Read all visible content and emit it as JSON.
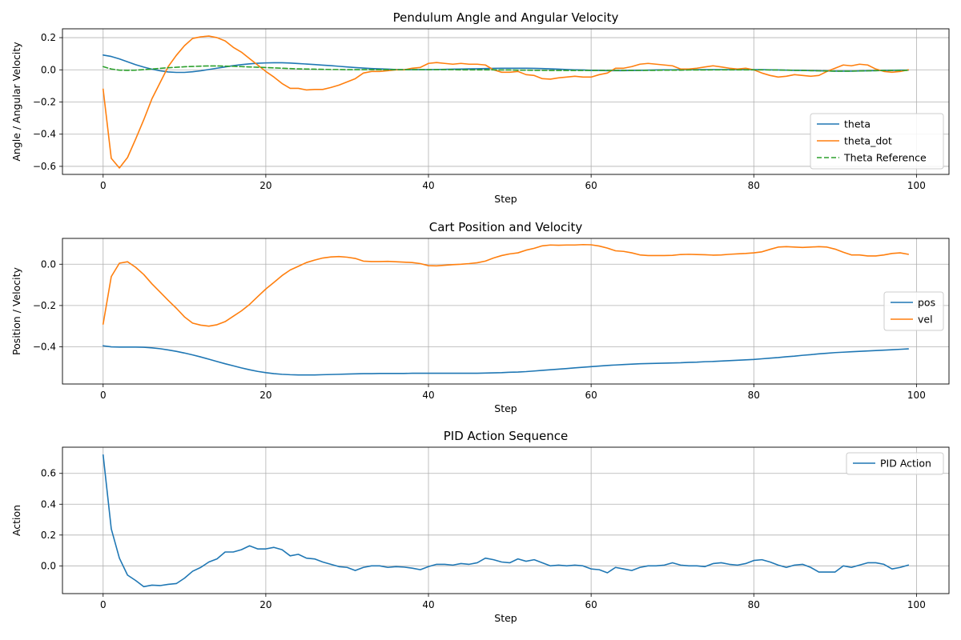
{
  "colors": {
    "blue": "#1f77b4",
    "orange": "#ff7f0e",
    "green": "#2ca02c"
  },
  "chart_data": [
    {
      "type": "line",
      "title": "Pendulum Angle and Angular Velocity",
      "xlabel": "Step",
      "ylabel": "Angle / Angular Velocity",
      "xlim": [
        -5,
        104
      ],
      "ylim": [
        -0.65,
        0.255
      ],
      "xticks": [
        0,
        20,
        40,
        60,
        80,
        100
      ],
      "yticks": [
        -0.6,
        -0.4,
        -0.2,
        0.0,
        0.2
      ],
      "ytick_labels": [
        "−0.6",
        "−0.4",
        "−0.2",
        "0.0",
        "0.2"
      ],
      "grid": true,
      "legend_position": "lower-right",
      "series": [
        {
          "name": "theta",
          "color": "#1f77b4",
          "style": "solid",
          "values": [
            0.092,
            0.083,
            0.068,
            0.05,
            0.032,
            0.017,
            0.004,
            -0.006,
            -0.013,
            -0.016,
            -0.016,
            -0.012,
            -0.006,
            0.002,
            0.01,
            0.018,
            0.026,
            0.032,
            0.037,
            0.041,
            0.043,
            0.044,
            0.044,
            0.042,
            0.039,
            0.036,
            0.033,
            0.029,
            0.026,
            0.022,
            0.018,
            0.014,
            0.011,
            0.008,
            0.006,
            0.004,
            0.002,
            0.001,
            0.001,
            0.001,
            0.001,
            0.002,
            0.003,
            0.004,
            0.005,
            0.006,
            0.007,
            0.008,
            0.009,
            0.01,
            0.01,
            0.01,
            0.01,
            0.009,
            0.008,
            0.006,
            0.004,
            0.002,
            0.0,
            -0.001,
            -0.003,
            -0.004,
            -0.005,
            -0.005,
            -0.005,
            -0.004,
            -0.003,
            -0.002,
            -0.001,
            0.0,
            0.0,
            0.001,
            0.001,
            0.001,
            0.001,
            0.001,
            0.001,
            0.001,
            0.001,
            0.001,
            0.001,
            0.001,
            0.0,
            -0.001,
            -0.002,
            -0.003,
            -0.004,
            -0.005,
            -0.006,
            -0.007,
            -0.008,
            -0.008,
            -0.008,
            -0.007,
            -0.006,
            -0.005,
            -0.004,
            -0.003,
            -0.002,
            -0.002
          ]
        },
        {
          "name": "theta_dot",
          "color": "#ff7f0e",
          "style": "solid",
          "values": [
            -0.12,
            -0.55,
            -0.61,
            -0.545,
            -0.43,
            -0.31,
            -0.18,
            -0.08,
            0.02,
            0.09,
            0.15,
            0.195,
            0.205,
            0.21,
            0.2,
            0.18,
            0.14,
            0.11,
            0.07,
            0.03,
            -0.01,
            -0.045,
            -0.085,
            -0.115,
            -0.115,
            -0.125,
            -0.122,
            -0.122,
            -0.11,
            -0.095,
            -0.075,
            -0.055,
            -0.02,
            -0.01,
            -0.01,
            -0.005,
            0.0,
            0.0,
            0.01,
            0.015,
            0.04,
            0.045,
            0.04,
            0.035,
            0.04,
            0.035,
            0.035,
            0.03,
            0.0,
            -0.015,
            -0.015,
            -0.01,
            -0.03,
            -0.035,
            -0.055,
            -0.058,
            -0.05,
            -0.045,
            -0.04,
            -0.045,
            -0.045,
            -0.03,
            -0.02,
            0.01,
            0.01,
            0.02,
            0.035,
            0.04,
            0.035,
            0.03,
            0.025,
            0.005,
            0.005,
            0.01,
            0.018,
            0.025,
            0.018,
            0.01,
            0.005,
            0.01,
            0.0,
            -0.02,
            -0.035,
            -0.045,
            -0.04,
            -0.03,
            -0.035,
            -0.04,
            -0.035,
            -0.01,
            0.01,
            0.03,
            0.025,
            0.035,
            0.03,
            0.005,
            -0.01,
            -0.015,
            -0.01,
            0.0
          ]
        },
        {
          "name": "Theta Reference",
          "color": "#2ca02c",
          "style": "dashed",
          "values": [
            0.02,
            0.005,
            -0.002,
            -0.003,
            -0.002,
            0.001,
            0.005,
            0.009,
            0.013,
            0.016,
            0.019,
            0.021,
            0.023,
            0.024,
            0.024,
            0.023,
            0.022,
            0.02,
            0.018,
            0.016,
            0.014,
            0.012,
            0.01,
            0.008,
            0.006,
            0.005,
            0.004,
            0.003,
            0.002,
            0.002,
            0.001,
            0.001,
            0.001,
            0.001,
            0.001,
            0.001,
            0.001,
            0.001,
            0.001,
            0.001,
            0.001,
            0.001,
            0.001,
            0.001,
            0.0,
            0.0,
            0.0,
            0.0,
            0.0,
            -0.001,
            -0.001,
            -0.002,
            -0.002,
            -0.003,
            -0.003,
            -0.004,
            -0.004,
            -0.004,
            -0.004,
            -0.004,
            -0.004,
            -0.004,
            -0.004,
            -0.004,
            -0.004,
            -0.004,
            -0.003,
            -0.003,
            -0.003,
            -0.002,
            -0.002,
            -0.002,
            -0.001,
            -0.001,
            -0.001,
            0.0,
            0.0,
            0.0,
            0.0,
            0.0,
            0.0,
            0.0,
            -0.001,
            -0.001,
            -0.002,
            -0.003,
            -0.004,
            -0.005,
            -0.006,
            -0.007,
            -0.008,
            -0.008,
            -0.008,
            -0.007,
            -0.006,
            -0.005,
            -0.004,
            -0.003,
            -0.003,
            -0.003
          ]
        }
      ]
    },
    {
      "type": "line",
      "title": "Cart Position and Velocity",
      "xlabel": "Step",
      "ylabel": "Position / Velocity",
      "xlim": [
        -5,
        104
      ],
      "ylim": [
        -0.58,
        0.125
      ],
      "xticks": [
        0,
        20,
        40,
        60,
        80,
        100
      ],
      "yticks": [
        -0.4,
        -0.2,
        0.0
      ],
      "ytick_labels": [
        "−0.4",
        "−0.2",
        "0.0"
      ],
      "grid": true,
      "legend_position": "center-right",
      "series": [
        {
          "name": "pos",
          "color": "#1f77b4",
          "style": "solid",
          "values": [
            -0.395,
            -0.4,
            -0.401,
            -0.401,
            -0.401,
            -0.402,
            -0.405,
            -0.409,
            -0.415,
            -0.422,
            -0.43,
            -0.439,
            -0.449,
            -0.46,
            -0.471,
            -0.482,
            -0.492,
            -0.502,
            -0.511,
            -0.519,
            -0.525,
            -0.53,
            -0.533,
            -0.535,
            -0.536,
            -0.536,
            -0.536,
            -0.535,
            -0.534,
            -0.533,
            -0.532,
            -0.531,
            -0.53,
            -0.53,
            -0.529,
            -0.529,
            -0.529,
            -0.529,
            -0.528,
            -0.528,
            -0.528,
            -0.528,
            -0.528,
            -0.528,
            -0.528,
            -0.528,
            -0.528,
            -0.527,
            -0.526,
            -0.525,
            -0.523,
            -0.522,
            -0.52,
            -0.517,
            -0.514,
            -0.511,
            -0.508,
            -0.505,
            -0.502,
            -0.499,
            -0.496,
            -0.493,
            -0.49,
            -0.488,
            -0.486,
            -0.484,
            -0.482,
            -0.481,
            -0.48,
            -0.479,
            -0.478,
            -0.477,
            -0.475,
            -0.474,
            -0.472,
            -0.471,
            -0.469,
            -0.467,
            -0.465,
            -0.463,
            -0.461,
            -0.458,
            -0.455,
            -0.452,
            -0.448,
            -0.445,
            -0.441,
            -0.438,
            -0.434,
            -0.431,
            -0.428,
            -0.426,
            -0.424,
            -0.422,
            -0.42,
            -0.418,
            -0.416,
            -0.414,
            -0.412,
            -0.41
          ]
        },
        {
          "name": "vel",
          "color": "#ff7f0e",
          "style": "solid",
          "values": [
            -0.29,
            -0.06,
            0.005,
            0.012,
            -0.015,
            -0.05,
            -0.095,
            -0.135,
            -0.175,
            -0.213,
            -0.255,
            -0.285,
            -0.295,
            -0.3,
            -0.293,
            -0.278,
            -0.252,
            -0.226,
            -0.195,
            -0.157,
            -0.12,
            -0.088,
            -0.055,
            -0.028,
            -0.01,
            0.008,
            0.02,
            0.03,
            0.035,
            0.037,
            0.034,
            0.028,
            0.015,
            0.013,
            0.013,
            0.014,
            0.012,
            0.01,
            0.008,
            0.003,
            -0.007,
            -0.008,
            -0.005,
            -0.002,
            0.0,
            0.003,
            0.007,
            0.015,
            0.03,
            0.042,
            0.05,
            0.055,
            0.068,
            0.077,
            0.089,
            0.093,
            0.092,
            0.093,
            0.093,
            0.095,
            0.094,
            0.088,
            0.078,
            0.065,
            0.062,
            0.055,
            0.045,
            0.042,
            0.042,
            0.042,
            0.043,
            0.047,
            0.048,
            0.047,
            0.046,
            0.044,
            0.045,
            0.048,
            0.05,
            0.052,
            0.055,
            0.06,
            0.072,
            0.083,
            0.085,
            0.083,
            0.081,
            0.083,
            0.085,
            0.083,
            0.073,
            0.058,
            0.045,
            0.045,
            0.04,
            0.04,
            0.045,
            0.052,
            0.055,
            0.048
          ]
        }
      ]
    },
    {
      "type": "line",
      "title": "PID Action Sequence",
      "xlabel": "Step",
      "ylabel": "Action",
      "xlim": [
        -5,
        104
      ],
      "ylim": [
        -0.18,
        0.77
      ],
      "xticks": [
        0,
        20,
        40,
        60,
        80,
        100
      ],
      "yticks": [
        0.0,
        0.2,
        0.4,
        0.6
      ],
      "ytick_labels": [
        "0.0",
        "0.2",
        "0.4",
        "0.6"
      ],
      "grid": true,
      "legend_position": "upper-right",
      "series": [
        {
          "name": "PID Action",
          "color": "#1f77b4",
          "style": "solid",
          "values": [
            0.72,
            0.24,
            0.05,
            -0.06,
            -0.095,
            -0.135,
            -0.125,
            -0.128,
            -0.12,
            -0.115,
            -0.08,
            -0.035,
            -0.01,
            0.025,
            0.045,
            0.09,
            0.09,
            0.105,
            0.13,
            0.11,
            0.11,
            0.12,
            0.105,
            0.065,
            0.075,
            0.05,
            0.045,
            0.025,
            0.01,
            -0.005,
            -0.01,
            -0.03,
            -0.01,
            0.0,
            0.0,
            -0.01,
            -0.005,
            -0.008,
            -0.015,
            -0.025,
            -0.005,
            0.01,
            0.01,
            0.005,
            0.015,
            0.01,
            0.02,
            0.05,
            0.04,
            0.025,
            0.02,
            0.045,
            0.03,
            0.04,
            0.02,
            0.0,
            0.005,
            0.0,
            0.005,
            0.0,
            -0.02,
            -0.025,
            -0.045,
            -0.01,
            -0.02,
            -0.03,
            -0.01,
            0.0,
            0.0,
            0.005,
            0.02,
            0.005,
            0.0,
            0.0,
            -0.005,
            0.015,
            0.02,
            0.01,
            0.005,
            0.015,
            0.035,
            0.04,
            0.025,
            0.005,
            -0.01,
            0.005,
            0.01,
            -0.01,
            -0.04,
            -0.04,
            -0.04,
            0.0,
            -0.01,
            0.005,
            0.02,
            0.02,
            0.01,
            -0.02,
            -0.01,
            0.005
          ]
        }
      ]
    }
  ]
}
